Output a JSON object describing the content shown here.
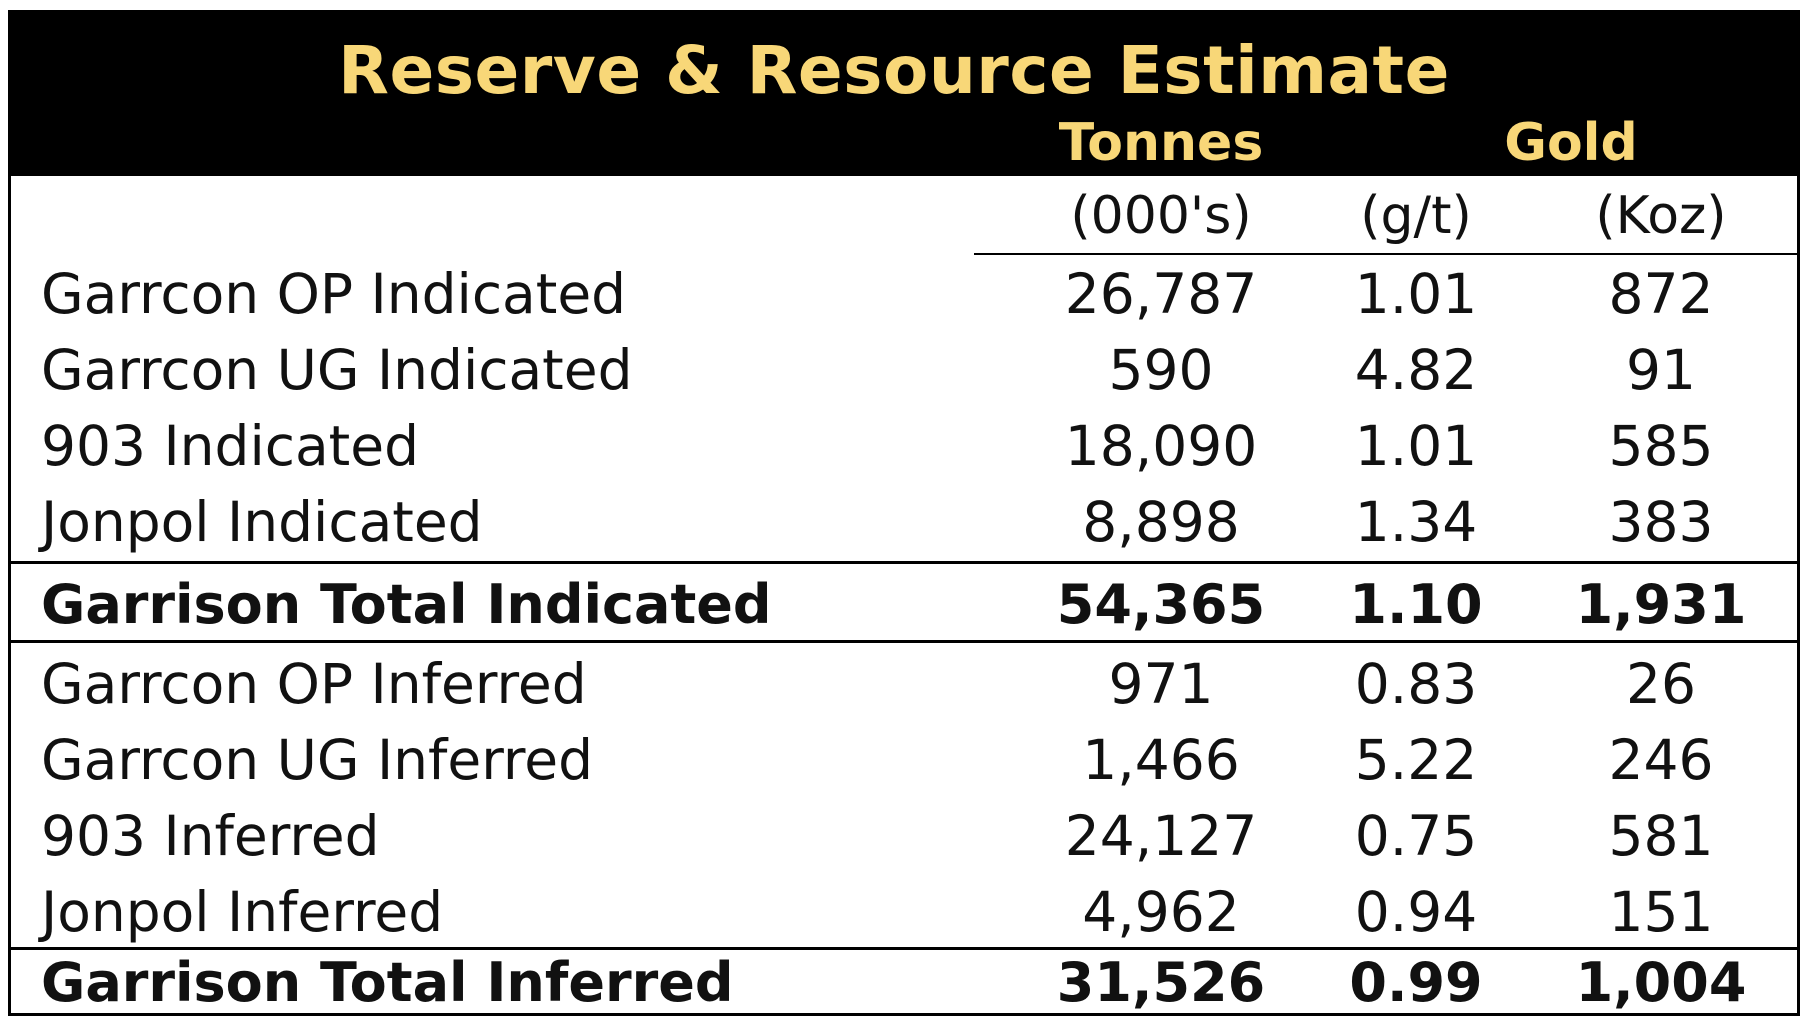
{
  "title": "Reserve & Resource Estimate",
  "headers": {
    "tonnes": "Tonnes",
    "gold": "Gold"
  },
  "units": {
    "tonnes": "(000's)",
    "grade": "(g/t)",
    "ounces": "(Koz)"
  },
  "colors": {
    "header_background": "#000000",
    "header_text": "#f8d778",
    "body_text": "#111111"
  },
  "rows": [
    {
      "label": "Garrcon OP Indicated",
      "tonnes": "26,787",
      "grade": "1.01",
      "ounces": "872"
    },
    {
      "label": "Garrcon UG Indicated",
      "tonnes": "590",
      "grade": "4.82",
      "ounces": "91"
    },
    {
      "label": "903 Indicated",
      "tonnes": "18,090",
      "grade": "1.01",
      "ounces": "585"
    },
    {
      "label": "Jonpol Indicated",
      "tonnes": "8,898",
      "grade": "1.34",
      "ounces": "383"
    },
    {
      "label": "Garrison Total Indicated",
      "tonnes": "54,365",
      "grade": "1.10",
      "ounces": "1,931"
    },
    {
      "label": "Garrcon OP Inferred",
      "tonnes": "971",
      "grade": "0.83",
      "ounces": "26"
    },
    {
      "label": "Garrcon UG Inferred",
      "tonnes": "1,466",
      "grade": "5.22",
      "ounces": "246"
    },
    {
      "label": "903 Inferred",
      "tonnes": "24,127",
      "grade": "0.75",
      "ounces": "581"
    },
    {
      "label": "Jonpol Inferred",
      "tonnes": "4,962",
      "grade": "0.94",
      "ounces": "151"
    },
    {
      "label": "Garrison Total Inferred",
      "tonnes": "31,526",
      "grade": "0.99",
      "ounces": "1,004"
    }
  ]
}
